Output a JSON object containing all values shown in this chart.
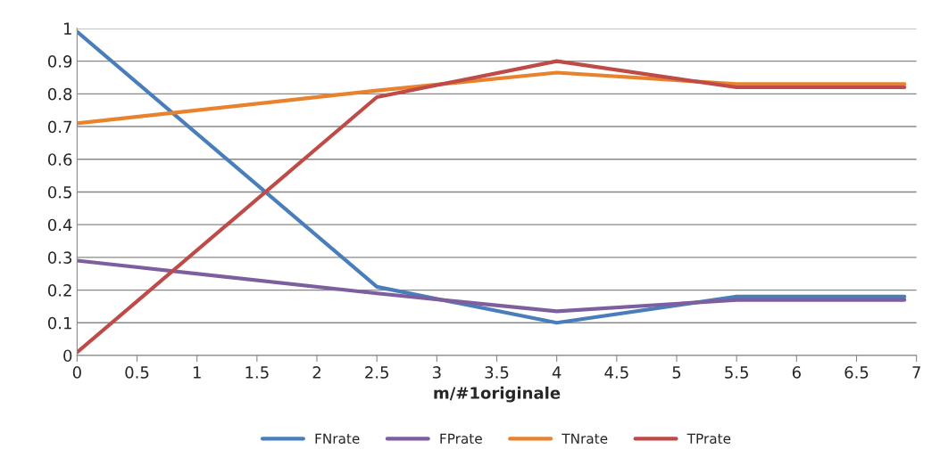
{
  "chart_data": {
    "type": "line",
    "xlabel": "m/#1originale",
    "x": [
      0,
      2.5,
      4,
      5.5,
      6.9
    ],
    "series": [
      {
        "name": "FNrate",
        "color": "#4a7ebb",
        "values": [
          0.99,
          0.21,
          0.1,
          0.18,
          0.18
        ]
      },
      {
        "name": "FPrate",
        "color": "#7d5fa0",
        "values": [
          0.29,
          0.19,
          0.135,
          0.17,
          0.17
        ]
      },
      {
        "name": "TNrate",
        "color": "#e8822c",
        "values": [
          0.71,
          0.81,
          0.865,
          0.83,
          0.83
        ]
      },
      {
        "name": "TPrate",
        "color": "#be4b48",
        "values": [
          0.01,
          0.79,
          0.9,
          0.82,
          0.82
        ]
      }
    ],
    "xlim": [
      0,
      7
    ],
    "xticks": [
      0,
      0.5,
      1,
      1.5,
      2,
      2.5,
      3,
      3.5,
      4,
      4.5,
      5,
      5.5,
      6,
      6.5,
      7
    ],
    "ylim": [
      0,
      1
    ],
    "yticks": [
      0,
      0.1,
      0.2,
      0.3,
      0.4,
      0.5,
      0.6,
      0.7,
      0.8,
      0.9,
      1
    ],
    "grid": "y",
    "legend": "bottom",
    "marker": "none",
    "line_style": "solid"
  }
}
